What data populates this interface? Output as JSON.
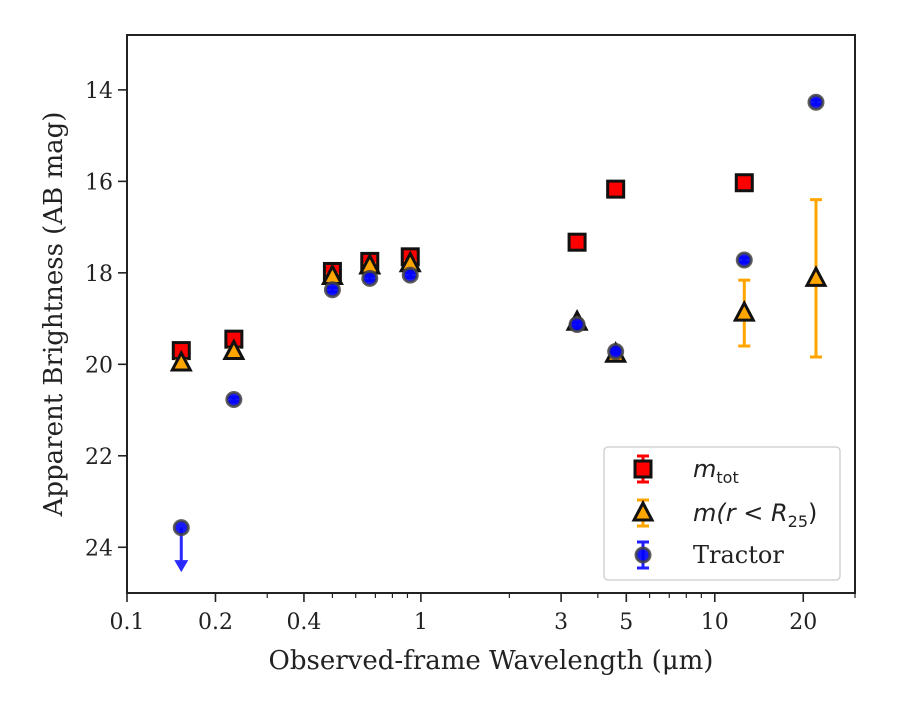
{
  "chart_data": {
    "type": "scatter",
    "xlabel": "Observed-frame Wavelength (μm)",
    "ylabel": "Apparent Brightness (AB mag)",
    "xscale": "log",
    "xlim": [
      0.1,
      30
    ],
    "ylim": [
      25.0,
      12.8
    ],
    "y_inverted": true,
    "grid": false,
    "legend_position": "lower right",
    "x_ticks": [
      {
        "value": 0.1,
        "label": "0.1"
      },
      {
        "value": 0.2,
        "label": "0.2"
      },
      {
        "value": 0.4,
        "label": "0.4"
      },
      {
        "value": 1,
        "label": "1"
      },
      {
        "value": 3,
        "label": "3"
      },
      {
        "value": 5,
        "label": "5"
      },
      {
        "value": 10,
        "label": "10"
      },
      {
        "value": 20,
        "label": "20"
      }
    ],
    "y_ticks": [
      14,
      16,
      18,
      20,
      22,
      24
    ],
    "legend": [
      {
        "series": "mtot",
        "label_main": "m",
        "label_sub": "tot"
      },
      {
        "series": "mR25",
        "label_main": "m(r < R",
        "label_sub": "25",
        "label_tail": ")"
      },
      {
        "series": "tractor",
        "label_main": "Tractor"
      }
    ],
    "series": [
      {
        "id": "mtot",
        "marker": "square",
        "color": "#ff0000",
        "edge": "#111111",
        "points": [
          {
            "x": 0.153,
            "y": 19.7,
            "err": 0.05
          },
          {
            "x": 0.231,
            "y": 19.45,
            "err": 0.05
          },
          {
            "x": 0.5,
            "y": 17.97,
            "err": 0.05
          },
          {
            "x": 0.67,
            "y": 17.75,
            "err": 0.05
          },
          {
            "x": 0.92,
            "y": 17.65,
            "err": 0.05
          },
          {
            "x": 3.4,
            "y": 17.33,
            "err": 0.05
          },
          {
            "x": 4.6,
            "y": 16.17,
            "err": 0.05
          },
          {
            "x": 12.6,
            "y": 16.03,
            "err": 0.05
          }
        ]
      },
      {
        "id": "mR25",
        "marker": "triangle",
        "color": "#ffa500",
        "edge": "#111111",
        "points": [
          {
            "x": 0.153,
            "y": 19.97,
            "err": 0.05
          },
          {
            "x": 0.231,
            "y": 19.72,
            "err": 0.05
          },
          {
            "x": 0.5,
            "y": 18.08,
            "err": 0.05
          },
          {
            "x": 0.67,
            "y": 17.85,
            "err": 0.05
          },
          {
            "x": 0.92,
            "y": 17.8,
            "err": 0.05
          },
          {
            "x": 3.4,
            "y": 19.08,
            "err": 0.05
          },
          {
            "x": 4.6,
            "y": 19.78,
            "err": 0.05
          },
          {
            "x": 12.6,
            "y": 18.88,
            "err": 0.72
          },
          {
            "x": 22.1,
            "y": 18.12,
            "err": 1.72
          }
        ]
      },
      {
        "id": "tractor",
        "marker": "circle",
        "color": "#0000ff",
        "edge": "#444444",
        "points": [
          {
            "x": 0.153,
            "y": 23.57,
            "upper_limit": true,
            "arrow_to": 24.5
          },
          {
            "x": 0.231,
            "y": 20.77,
            "err": 0.05
          },
          {
            "x": 0.5,
            "y": 18.37,
            "err": 0.05
          },
          {
            "x": 0.67,
            "y": 18.12,
            "err": 0.05
          },
          {
            "x": 0.92,
            "y": 18.05,
            "err": 0.05
          },
          {
            "x": 3.4,
            "y": 19.13,
            "err": 0.05
          },
          {
            "x": 4.6,
            "y": 19.72,
            "err": 0.05
          },
          {
            "x": 12.6,
            "y": 17.72,
            "err": 0.05
          },
          {
            "x": 22.1,
            "y": 14.27,
            "err": 0.05
          }
        ]
      }
    ]
  }
}
